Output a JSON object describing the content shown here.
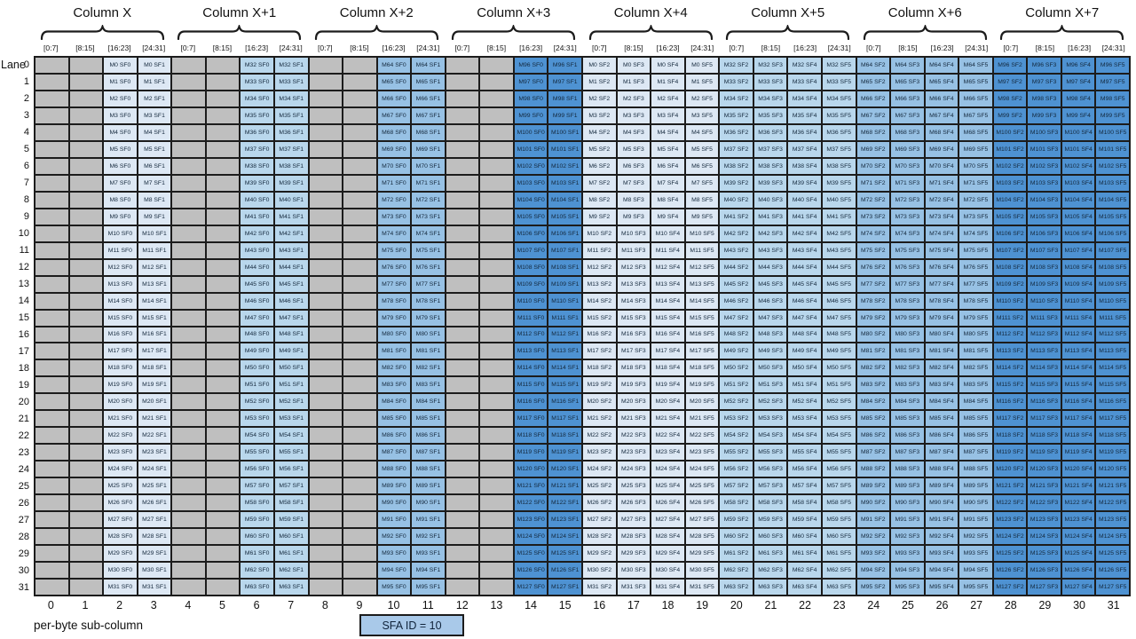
{
  "lane_axis": {
    "label": "Lane",
    "numbers": [
      0,
      1,
      2,
      3,
      4,
      5,
      6,
      7,
      8,
      9,
      10,
      11,
      12,
      13,
      14,
      15,
      16,
      17,
      18,
      19,
      20,
      21,
      22,
      23,
      24,
      25,
      26,
      27,
      28,
      29,
      30,
      31
    ]
  },
  "byte_labels": [
    "[0:7]",
    "[8:15]",
    "[16:23]",
    "[24:31]"
  ],
  "groups": [
    {
      "label": "Column X",
      "m_base": 0,
      "sfs": [
        null,
        null,
        0,
        1
      ],
      "shade": 0
    },
    {
      "label": "Column X+1",
      "m_base": 32,
      "sfs": [
        null,
        null,
        0,
        1
      ],
      "shade": 1
    },
    {
      "label": "Column X+2",
      "m_base": 64,
      "sfs": [
        null,
        null,
        0,
        1
      ],
      "shade": 2
    },
    {
      "label": "Column X+3",
      "m_base": 96,
      "sfs": [
        null,
        null,
        0,
        1
      ],
      "shade": 3
    },
    {
      "label": "Column X+4",
      "m_base": 0,
      "sfs": [
        2,
        3,
        4,
        5
      ],
      "shade": 0
    },
    {
      "label": "Column X+5",
      "m_base": 32,
      "sfs": [
        2,
        3,
        4,
        5
      ],
      "shade": 1
    },
    {
      "label": "Column X+6",
      "m_base": 64,
      "sfs": [
        2,
        3,
        4,
        5
      ],
      "shade": 2
    },
    {
      "label": "Column X+7",
      "m_base": 96,
      "sfs": [
        2,
        3,
        4,
        5
      ],
      "shade": 3
    }
  ],
  "cell_text_pattern": "M{m} SF{sf}",
  "footer": {
    "sub_column_numbers": [
      0,
      1,
      2,
      3,
      4,
      5,
      6,
      7,
      8,
      9,
      10,
      11,
      12,
      13,
      14,
      15,
      16,
      17,
      18,
      19,
      20,
      21,
      22,
      23,
      24,
      25,
      26,
      27,
      28,
      29,
      30,
      31
    ],
    "axis_label": "per-byte sub-column",
    "badge_label": "SFA ID = 10"
  },
  "colors": {
    "shades": [
      "#dde8f4",
      "#b9d7ec",
      "#97c1e4",
      "#4e92d2"
    ],
    "empty_fill": "#bfbfbf",
    "border": "#1c1c1c",
    "badge_fill": "#a9c9e9",
    "cell_text": "#14283c"
  }
}
